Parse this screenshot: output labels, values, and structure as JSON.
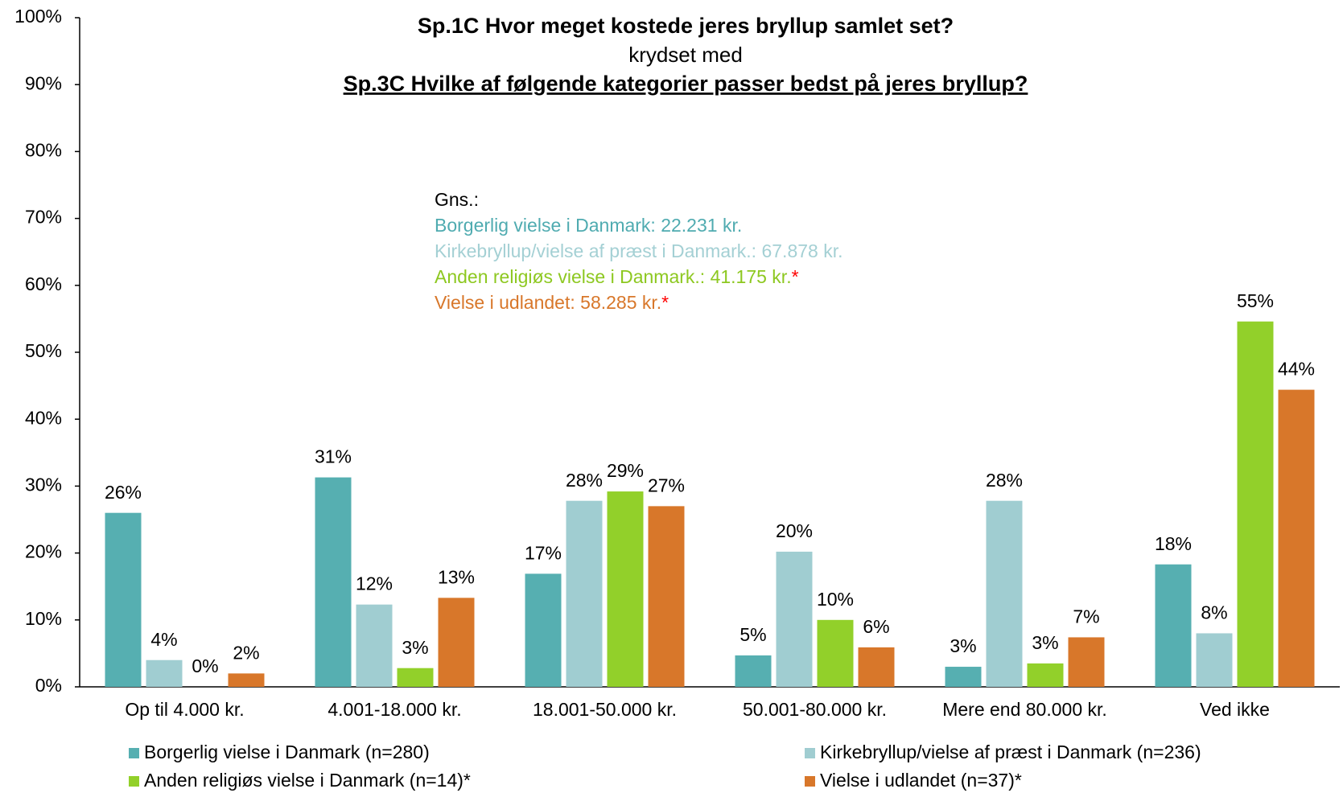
{
  "chart_data": {
    "type": "bar",
    "title": "Sp.1C Hvor meget kostede jeres bryllup samlet set?",
    "subtitle": "krydset med",
    "title2": "Sp.3C Hvilke af følgende kategorier passer bedst på jeres bryllup?",
    "categories": [
      "Op til 4.000 kr.",
      "4.001-18.000 kr.",
      "18.001-50.000 kr.",
      "50.001-80.000 kr.",
      "Mere end 80.000 kr.",
      "Ved ikke"
    ],
    "series": [
      {
        "name": "Borgerlig vielse i Danmark (n=280)",
        "color": "#56afb1",
        "values": [
          26.0,
          31.3,
          16.9,
          4.7,
          3.0,
          18.3
        ],
        "value_labels": [
          "26%",
          "31%",
          "17%",
          "5%",
          "3%",
          "18%"
        ]
      },
      {
        "name": "Kirkebryllup/vielse af præst i Danmark (n=236)",
        "color": "#a0cdd1",
        "values": [
          4.0,
          12.3,
          27.8,
          20.2,
          27.8,
          8.0
        ],
        "value_labels": [
          "4%",
          "12%",
          "28%",
          "20%",
          "28%",
          "8%"
        ]
      },
      {
        "name": "Anden religiøs vielse i Danmark (n=14)*",
        "color": "#92d02a",
        "values": [
          0,
          2.8,
          29.2,
          10.0,
          3.5,
          54.6
        ],
        "value_labels": [
          "0%",
          "3%",
          "29%",
          "10%",
          "3%",
          "55%"
        ]
      },
      {
        "name": "Vielse i udlandet (n=37)*",
        "color": "#d8772a",
        "values": [
          2.0,
          13.3,
          27.0,
          5.9,
          7.4,
          44.4
        ],
        "value_labels": [
          "2%",
          "13%",
          "27%",
          "6%",
          "7%",
          "44%"
        ]
      }
    ],
    "ylim": [
      0,
      100
    ],
    "yticks": [
      {
        "value": 0,
        "label": "0%"
      },
      {
        "value": 10,
        "label": "10%"
      },
      {
        "value": 20,
        "label": "20%"
      },
      {
        "value": 30,
        "label": "30%"
      },
      {
        "value": 40,
        "label": "40%"
      },
      {
        "value": 50,
        "label": "50%"
      },
      {
        "value": 60,
        "label": "60%"
      },
      {
        "value": 70,
        "label": "70%"
      },
      {
        "value": 80,
        "label": "80%"
      },
      {
        "value": 90,
        "label": "90%"
      },
      {
        "value": 100,
        "label": "100%"
      }
    ],
    "grid": false,
    "legend": "bottom",
    "annotation_title": "Gns.:",
    "annotations": [
      {
        "text": "Borgerlig vielse i Danmark: 22.231 kr.",
        "color": "#4fabb0"
      },
      {
        "text": "Kirkebryllup/vielse af præst i Danmark.: 67.878 kr.",
        "color": "#a4d0d4"
      },
      {
        "text": "Anden religiøs vielse i Danmark.: 41.175 kr.",
        "color": "#8dc820",
        "suffix": "*",
        "suffix_color": "#ff0000"
      },
      {
        "text": "Vielse i udlandet: 58.285 kr.",
        "color": "#d8772a",
        "suffix": "*",
        "suffix_color": "#ff0000"
      }
    ]
  }
}
